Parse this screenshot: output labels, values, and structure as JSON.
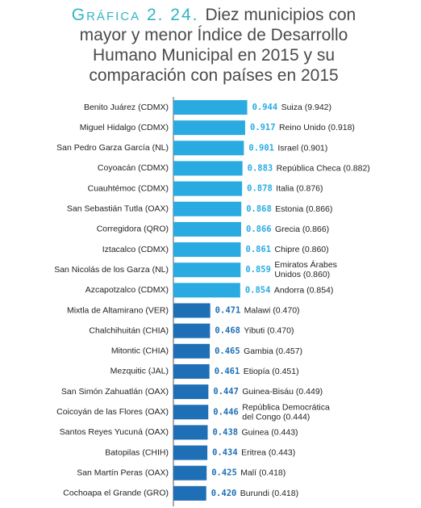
{
  "chart_data": {
    "type": "bar",
    "orientation": "horizontal",
    "label": "Gráfica 2. 24.",
    "title": [
      "Diez municipios con",
      "mayor y menor Índice de Desarrollo",
      "Humano Municipal en 2015 y su",
      "comparación con países en 2015"
    ],
    "categories": [
      "Benito Juárez (CDMX)",
      "Miguel Hidalgo (CDMX)",
      "San Pedro Garza García (NL)",
      "Coyoacán (CDMX)",
      "Cuauhtémoc (CDMX)",
      "San Sebastián Tutla (OAX)",
      "Corregidora (QRO)",
      "Iztacalco (CDMX)",
      "San Nicolás de los Garza (NL)",
      "Azcapotzalco (CDMX)",
      "Mixtla de Altamirano (VER)",
      "Chalchihuitán (CHIA)",
      "Mitontic (CHIA)",
      "Mezquitic (JAL)",
      "San Simón Zahuatlán (OAX)",
      "Coicoyán de las Flores (OAX)",
      "Santos Reyes Yucuná (OAX)",
      "Batopilas (CHIH)",
      "San Martín Peras (OAX)",
      "Cochoapa el Grande (GRO)"
    ],
    "values": [
      0.944,
      0.917,
      0.901,
      0.883,
      0.878,
      0.868,
      0.866,
      0.861,
      0.859,
      0.854,
      0.471,
      0.468,
      0.465,
      0.461,
      0.447,
      0.446,
      0.438,
      0.434,
      0.425,
      0.42
    ],
    "value_labels": [
      "0.944",
      "0.917",
      "0.901",
      "0.883",
      "0.878",
      "0.868",
      "0.866",
      "0.861",
      "0.859",
      "0.854",
      "0.471",
      "0.468",
      "0.465",
      "0.461",
      "0.447",
      "0.446",
      "0.438",
      "0.434",
      "0.425",
      "0.420"
    ],
    "annotations": [
      [
        "Suiza (9.942)"
      ],
      [
        "Reino Unido (0.918)"
      ],
      [
        "Israel (0.901)"
      ],
      [
        "República Checa (0.882)"
      ],
      [
        "Italia (0.876)"
      ],
      [
        "Estonia (0.866)"
      ],
      [
        "Grecia (0.866)"
      ],
      [
        "Chipre (0.860)"
      ],
      [
        "Emiratos Árabes",
        "Unidos (0.860)"
      ],
      [
        "Andorra (0.854)"
      ],
      [
        "Malawi (0.470)"
      ],
      [
        "Yibuti (0.470)"
      ],
      [
        "Gambia (0.457)"
      ],
      [
        "Etiopía (0.451)"
      ],
      [
        "Guinea-Bisáu (0.449)"
      ],
      [
        "República Democrática",
        "del Congo (0.444)"
      ],
      [
        "Guinea (0.443)"
      ],
      [
        "Eritrea (0.443)"
      ],
      [
        "Malí (0.418)"
      ],
      [
        "Burundi (0.418)"
      ]
    ],
    "colors": [
      "#29abe2",
      "#29abe2",
      "#29abe2",
      "#29abe2",
      "#29abe2",
      "#29abe2",
      "#29abe2",
      "#29abe2",
      "#29abe2",
      "#29abe2",
      "#1f6fb6",
      "#1f6fb6",
      "#1f6fb6",
      "#1f6fb6",
      "#1f6fb6",
      "#1f6fb6",
      "#1f6fb6",
      "#1f6fb6",
      "#1f6fb6",
      "#1f6fb6"
    ],
    "xlim": [
      0,
      1
    ]
  }
}
